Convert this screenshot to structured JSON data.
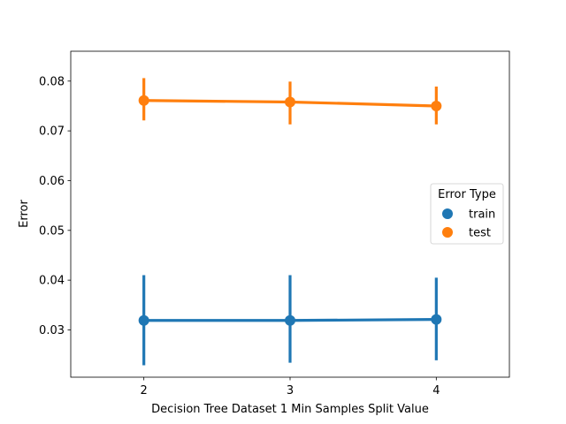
{
  "chart_data": {
    "type": "line",
    "title": "",
    "xlabel": "Decision Tree Dataset 1 Min Samples Split Value",
    "ylabel": "Error",
    "categories": [
      "2",
      "3",
      "4"
    ],
    "ylim": [
      0.0205,
      0.086
    ],
    "yticks": [
      0.03,
      0.04,
      0.05,
      0.06,
      0.07,
      0.08
    ],
    "ytick_labels": [
      "0.03",
      "0.04",
      "0.05",
      "0.06",
      "0.07",
      "0.08"
    ],
    "grid": false,
    "legend": {
      "title": "Error Type",
      "placement": "center-right"
    },
    "series": [
      {
        "name": "train",
        "color": "#1f77b4",
        "values": [
          0.0319,
          0.0319,
          0.0321
        ],
        "ci_low": [
          0.0229,
          0.0234,
          0.0239
        ],
        "ci_high": [
          0.041,
          0.041,
          0.0405
        ]
      },
      {
        "name": "test",
        "color": "#ff7f0e",
        "values": [
          0.0761,
          0.0758,
          0.075
        ],
        "ci_low": [
          0.0721,
          0.0713,
          0.0713
        ],
        "ci_high": [
          0.0806,
          0.0799,
          0.0789
        ]
      }
    ]
  }
}
